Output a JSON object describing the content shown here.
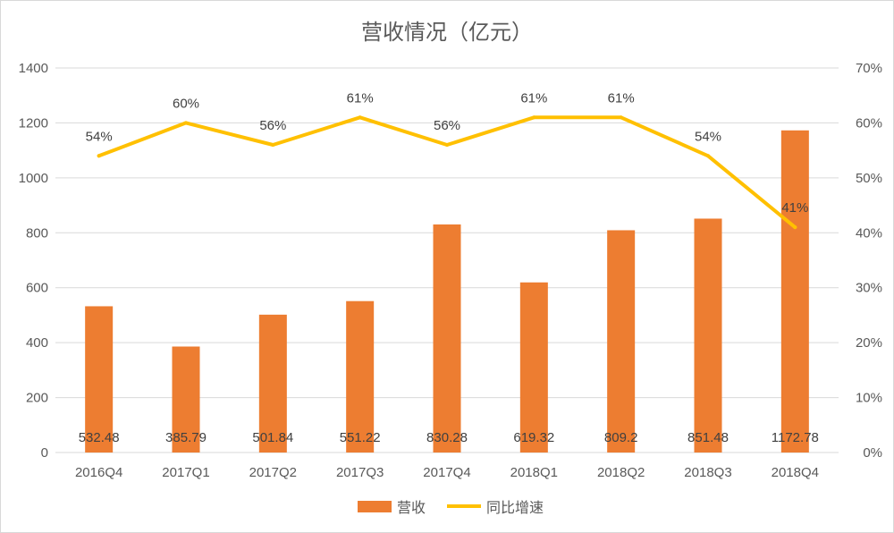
{
  "chart_data": {
    "type": "bar",
    "title": "营收情况（亿元）",
    "categories": [
      "2016Q4",
      "2017Q1",
      "2017Q2",
      "2017Q3",
      "2017Q4",
      "2018Q1",
      "2018Q2",
      "2018Q3",
      "2018Q4"
    ],
    "series": [
      {
        "name": "营收",
        "type": "bar",
        "axis": "left",
        "color": "#ED7D31",
        "values": [
          532.48,
          385.79,
          501.84,
          551.22,
          830.28,
          619.32,
          809.2,
          851.48,
          1172.78
        ],
        "labels": [
          "532.48",
          "385.79",
          "501.84",
          "551.22",
          "830.28",
          "619.32",
          "809.2",
          "851.48",
          "1172.78"
        ]
      },
      {
        "name": "同比增速",
        "type": "line",
        "axis": "right",
        "color": "#FFC000",
        "values": [
          54,
          60,
          56,
          61,
          56,
          61,
          61,
          54,
          41
        ],
        "labels": [
          "54%",
          "60%",
          "56%",
          "61%",
          "56%",
          "61%",
          "61%",
          "54%",
          "41%"
        ]
      }
    ],
    "y_left": {
      "min": 0,
      "max": 1400,
      "ticks": [
        "0",
        "200",
        "400",
        "600",
        "800",
        "1000",
        "1200",
        "1400"
      ]
    },
    "y_right": {
      "min": 0,
      "max": 70,
      "ticks": [
        "0%",
        "10%",
        "20%",
        "30%",
        "40%",
        "50%",
        "60%",
        "70%"
      ]
    },
    "grid": true,
    "legend": "bottom"
  }
}
